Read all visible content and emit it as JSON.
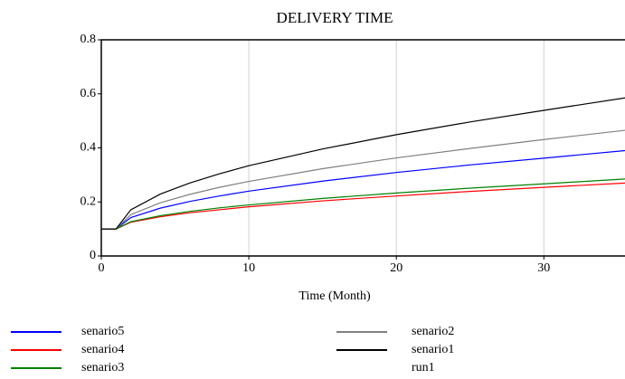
{
  "chart_data": {
    "type": "line",
    "title": "DELIVERY TIME",
    "x_label": "Time (Month)",
    "x": [
      0,
      1,
      2,
      4,
      6,
      8,
      10,
      15,
      20,
      25,
      30,
      35.5
    ],
    "xlim": [
      0,
      35.5
    ],
    "xticks": [
      0,
      10,
      20,
      30
    ],
    "ylim": [
      0,
      0.8
    ],
    "yticks": [
      0,
      0.2,
      0.4,
      0.6,
      0.8
    ],
    "grid": "x",
    "series": [
      {
        "name": "senario5",
        "color": "#0000ff",
        "values": [
          0.1,
          0.1,
          0.142,
          0.177,
          0.202,
          0.222,
          0.24,
          0.277,
          0.309,
          0.337,
          0.362,
          0.39
        ]
      },
      {
        "name": "senario4",
        "color": "#ff0000",
        "values": [
          0.1,
          0.1,
          0.125,
          0.145,
          0.16,
          0.171,
          0.182,
          0.204,
          0.222,
          0.239,
          0.254,
          0.27
        ]
      },
      {
        "name": "senario3",
        "color": "#008000",
        "values": [
          0.1,
          0.1,
          0.127,
          0.149,
          0.165,
          0.178,
          0.189,
          0.213,
          0.233,
          0.251,
          0.267,
          0.285
        ]
      },
      {
        "name": "senario2",
        "color": "#808080",
        "values": [
          0.1,
          0.1,
          0.153,
          0.197,
          0.228,
          0.254,
          0.276,
          0.323,
          0.363,
          0.398,
          0.431,
          0.465
        ]
      },
      {
        "name": "senario1",
        "color": "#000000",
        "values": [
          0.1,
          0.1,
          0.171,
          0.229,
          0.27,
          0.304,
          0.334,
          0.396,
          0.449,
          0.496,
          0.539,
          0.585
        ]
      },
      {
        "name": "run1",
        "values": [
          null,
          null,
          null,
          null,
          null,
          null,
          null,
          null,
          null,
          null,
          null,
          null
        ]
      }
    ]
  }
}
